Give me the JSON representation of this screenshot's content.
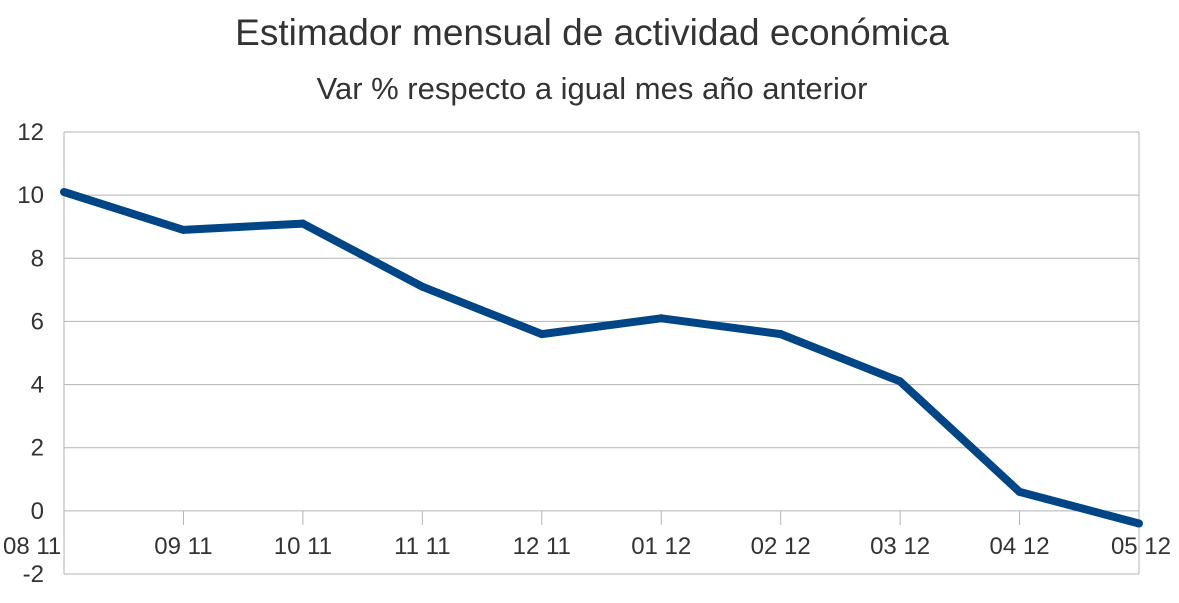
{
  "chart_data": {
    "type": "line",
    "title": "Estimador mensual de actividad económica",
    "subtitle": "Var % respecto a igual mes año anterior",
    "xlabel": "",
    "ylabel": "",
    "categories": [
      "08 11",
      "09 11",
      "10 11",
      "11 11",
      "12 11",
      "01 12",
      "02 12",
      "03 12",
      "04 12",
      "05 12"
    ],
    "series": [
      {
        "name": "Var %",
        "values": [
          10.1,
          8.9,
          9.1,
          7.1,
          5.6,
          6.1,
          5.6,
          4.1,
          0.6,
          -0.4
        ]
      }
    ],
    "ylim": [
      -2,
      12
    ],
    "yticks": [
      -2,
      0,
      2,
      4,
      6,
      8,
      10,
      12
    ],
    "grid": true,
    "legend": "none",
    "colors": {
      "line": "#004586",
      "grid": "#b3b3b3",
      "text": "#333333"
    }
  }
}
